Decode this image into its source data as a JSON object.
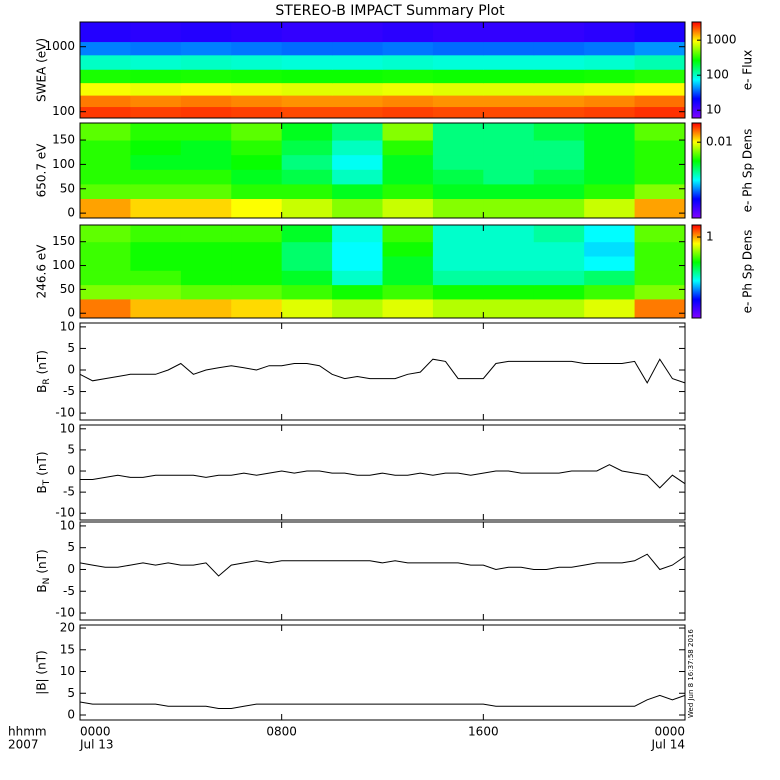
{
  "title": "STEREO-B IMPACT Summary Plot",
  "timestamp": "Wed Jun  8 16:37:58 2016",
  "chart_data": [
    {
      "type": "heatmap",
      "ylabel": "SWEA (eV)",
      "log": true,
      "ylim": [
        80,
        2400
      ],
      "yticks": [
        100,
        1000
      ],
      "xlim": [
        0,
        24
      ],
      "x_edges": [
        0,
        2,
        4,
        6,
        8,
        10,
        12,
        14,
        16,
        18,
        20,
        22,
        24
      ],
      "y_edges": [
        80,
        120,
        180,
        280,
        450,
        750,
        1200,
        2400
      ],
      "z": [
        [
          2500,
          2400,
          2500,
          2400,
          2300,
          2300,
          2400,
          2300,
          2300,
          2300,
          2400,
          2600
        ],
        [
          1800,
          1700,
          1800,
          1700,
          1600,
          1600,
          1700,
          1600,
          1600,
          1600,
          1700,
          1900
        ],
        [
          900,
          850,
          900,
          850,
          800,
          800,
          850,
          800,
          800,
          800,
          850,
          950
        ],
        [
          300,
          290,
          300,
          290,
          280,
          280,
          290,
          280,
          280,
          280,
          290,
          320
        ],
        [
          100,
          95,
          100,
          95,
          90,
          90,
          95,
          90,
          90,
          90,
          95,
          110
        ],
        [
          40,
          38,
          40,
          38,
          36,
          36,
          38,
          36,
          36,
          36,
          38,
          44
        ],
        [
          15,
          14,
          15,
          14,
          13,
          13,
          14,
          13,
          13,
          13,
          14,
          16
        ]
      ],
      "colormap": "rainbow",
      "clim": [
        6,
        3300
      ],
      "cticks": [
        10,
        100,
        1000
      ],
      "clabel": "e- Flux"
    },
    {
      "type": "heatmap",
      "ylabel": "650.7 eV",
      "log": false,
      "ylim": [
        -10,
        185
      ],
      "yticks": [
        0,
        50,
        100,
        150
      ],
      "xlim": [
        0,
        24
      ],
      "x_edges": [
        0,
        2,
        4,
        6,
        8,
        10,
        12,
        14,
        16,
        18,
        20,
        22,
        24
      ],
      "y_edges": [
        -10,
        30,
        60,
        90,
        120,
        150,
        185
      ],
      "z": [
        [
          0.015,
          0.012,
          0.012,
          0.01,
          0.008,
          0.006,
          0.008,
          0.006,
          0.006,
          0.006,
          0.008,
          0.015
        ],
        [
          0.005,
          0.005,
          0.005,
          0.004,
          0.004,
          0.003,
          0.004,
          0.003,
          0.003,
          0.003,
          0.004,
          0.006
        ],
        [
          0.004,
          0.004,
          0.004,
          0.003,
          0.0025,
          0.0015,
          0.003,
          0.0025,
          0.002,
          0.0025,
          0.003,
          0.004
        ],
        [
          0.004,
          0.003,
          0.003,
          0.0035,
          0.002,
          0.0012,
          0.003,
          0.002,
          0.002,
          0.002,
          0.003,
          0.004
        ],
        [
          0.004,
          0.0035,
          0.003,
          0.004,
          0.0025,
          0.0015,
          0.004,
          0.002,
          0.002,
          0.002,
          0.003,
          0.004
        ],
        [
          0.005,
          0.004,
          0.004,
          0.005,
          0.003,
          0.002,
          0.006,
          0.002,
          0.002,
          0.0025,
          0.003,
          0.005
        ]
      ],
      "colormap": "rainbow",
      "clim": [
        0.00013,
        0.03
      ],
      "cticks": [
        0.01
      ],
      "clabel": "e- Ph Sp Dens"
    },
    {
      "type": "heatmap",
      "ylabel": "246.6 eV",
      "log": false,
      "ylim": [
        -10,
        185
      ],
      "yticks": [
        0,
        50,
        100,
        150
      ],
      "xlim": [
        0,
        24
      ],
      "x_edges": [
        0,
        2,
        4,
        6,
        8,
        10,
        12,
        14,
        16,
        18,
        20,
        22,
        24
      ],
      "y_edges": [
        -10,
        30,
        60,
        90,
        120,
        150,
        185
      ],
      "z": [
        [
          1.2,
          0.9,
          0.9,
          0.8,
          0.6,
          0.5,
          0.6,
          0.5,
          0.5,
          0.5,
          0.6,
          1.2
        ],
        [
          0.4,
          0.4,
          0.35,
          0.35,
          0.3,
          0.25,
          0.3,
          0.25,
          0.25,
          0.25,
          0.3,
          0.4
        ],
        [
          0.3,
          0.3,
          0.25,
          0.25,
          0.2,
          0.1,
          0.2,
          0.12,
          0.12,
          0.12,
          0.15,
          0.3
        ],
        [
          0.3,
          0.25,
          0.25,
          0.25,
          0.15,
          0.08,
          0.2,
          0.1,
          0.1,
          0.1,
          0.08,
          0.3
        ],
        [
          0.3,
          0.25,
          0.25,
          0.25,
          0.15,
          0.08,
          0.25,
          0.1,
          0.1,
          0.1,
          0.07,
          0.3
        ],
        [
          0.35,
          0.3,
          0.3,
          0.3,
          0.2,
          0.09,
          0.3,
          0.1,
          0.1,
          0.12,
          0.08,
          0.35
        ]
      ],
      "colormap": "rainbow",
      "clim": [
        0.0094,
        2
      ],
      "cticks": [
        1
      ],
      "clabel": "e- Ph Sp Dens"
    },
    {
      "type": "line",
      "ylabel": {
        "text": "B",
        "sub": "R",
        "unit": "(nT)"
      },
      "color": "#000000",
      "ylim": [
        -11.6,
        10.9
      ],
      "yticks": [
        -10,
        -5,
        0,
        5,
        10
      ],
      "xlim": [
        0,
        24
      ],
      "x": [
        0,
        0.5,
        1,
        1.5,
        2,
        2.5,
        3,
        3.5,
        4,
        4.5,
        5,
        5.5,
        6,
        6.5,
        7,
        7.5,
        8,
        8.5,
        9,
        9.5,
        10,
        10.5,
        11,
        11.5,
        12,
        12.5,
        13,
        13.5,
        14,
        14.5,
        15,
        15.5,
        16,
        16.5,
        17,
        17.5,
        18,
        18.5,
        19,
        19.5,
        20,
        20.5,
        21,
        21.5,
        22,
        22.5,
        23,
        23.5,
        24
      ],
      "values": [
        -1,
        -2.5,
        -2,
        -1.5,
        -1,
        -1,
        -1,
        0,
        1.5,
        -1,
        0,
        0.5,
        1,
        0.5,
        0,
        1,
        1,
        1.5,
        1.5,
        1,
        -1,
        -2,
        -1.5,
        -2,
        -2,
        -2,
        -1,
        -0.5,
        2.5,
        2,
        -2,
        -2,
        -2,
        1.5,
        2,
        2,
        2,
        2,
        2,
        2,
        1.5,
        1.5,
        1.5,
        1.5,
        2,
        -3,
        2.5,
        -2,
        -3
      ]
    },
    {
      "type": "line",
      "ylabel": {
        "text": "B",
        "sub": "T",
        "unit": "(nT)"
      },
      "color": "#000000",
      "ylim": [
        -11.6,
        10.9
      ],
      "yticks": [
        -10,
        -5,
        0,
        5,
        10
      ],
      "xlim": [
        0,
        24
      ],
      "x": [
        0,
        0.5,
        1,
        1.5,
        2,
        2.5,
        3,
        3.5,
        4,
        4.5,
        5,
        5.5,
        6,
        6.5,
        7,
        7.5,
        8,
        8.5,
        9,
        9.5,
        10,
        10.5,
        11,
        11.5,
        12,
        12.5,
        13,
        13.5,
        14,
        14.5,
        15,
        15.5,
        16,
        16.5,
        17,
        17.5,
        18,
        18.5,
        19,
        19.5,
        20,
        20.5,
        21,
        21.5,
        22,
        22.5,
        23,
        23.5,
        24
      ],
      "values": [
        -2,
        -2,
        -1.5,
        -1,
        -1.5,
        -1.5,
        -1,
        -1,
        -1,
        -1,
        -1.5,
        -1,
        -1,
        -0.5,
        -1,
        -0.5,
        0,
        -0.5,
        0,
        0,
        -0.5,
        -0.5,
        -1,
        -1,
        -0.5,
        -1,
        -1,
        -0.5,
        -1,
        -0.5,
        -0.5,
        -1,
        -0.5,
        0,
        0,
        -0.5,
        -0.5,
        -0.5,
        -0.5,
        0,
        0,
        0,
        1.5,
        0,
        -0.5,
        -1,
        -4,
        -1,
        -3
      ]
    },
    {
      "type": "line",
      "ylabel": {
        "text": "B",
        "sub": "N",
        "unit": "(nT)"
      },
      "color": "#000000",
      "ylim": [
        -11.6,
        10.9
      ],
      "yticks": [
        -10,
        -5,
        0,
        5,
        10
      ],
      "xlim": [
        0,
        24
      ],
      "x": [
        0,
        0.5,
        1,
        1.5,
        2,
        2.5,
        3,
        3.5,
        4,
        4.5,
        5,
        5.5,
        6,
        6.5,
        7,
        7.5,
        8,
        8.5,
        9,
        9.5,
        10,
        10.5,
        11,
        11.5,
        12,
        12.5,
        13,
        13.5,
        14,
        14.5,
        15,
        15.5,
        16,
        16.5,
        17,
        17.5,
        18,
        18.5,
        19,
        19.5,
        20,
        20.5,
        21,
        21.5,
        22,
        22.5,
        23,
        23.5,
        24
      ],
      "values": [
        1.5,
        1,
        0.5,
        0.5,
        1,
        1.5,
        1,
        1.5,
        1,
        1,
        1.5,
        -1.5,
        1,
        1.5,
        2,
        1.5,
        2,
        2,
        2,
        2,
        2,
        2,
        2,
        2,
        1.5,
        2,
        1.5,
        1.5,
        1.5,
        1.5,
        1.5,
        1,
        1,
        0,
        0.5,
        0.5,
        0,
        0,
        0.5,
        0.5,
        1,
        1.5,
        1.5,
        1.5,
        2,
        3.5,
        0,
        1,
        3
      ]
    },
    {
      "type": "line",
      "ylabel": "|B| (nT)",
      "color": "#000000",
      "ylim": [
        -1.15,
        20.7
      ],
      "yticks": [
        0,
        5,
        10,
        15,
        20
      ],
      "xlim": [
        0,
        24
      ],
      "x": [
        0,
        0.5,
        1,
        1.5,
        2,
        2.5,
        3,
        3.5,
        4,
        4.5,
        5,
        5.5,
        6,
        6.5,
        7,
        7.5,
        8,
        8.5,
        9,
        9.5,
        10,
        10.5,
        11,
        11.5,
        12,
        12.5,
        13,
        13.5,
        14,
        14.5,
        15,
        15.5,
        16,
        16.5,
        17,
        17.5,
        18,
        18.5,
        19,
        19.5,
        20,
        20.5,
        21,
        21.5,
        22,
        22.5,
        23,
        23.5,
        24
      ],
      "values": [
        3,
        2.5,
        2.5,
        2.5,
        2.5,
        2.5,
        2.5,
        2,
        2,
        2,
        2,
        1.5,
        1.5,
        2,
        2.5,
        2.5,
        2.5,
        2.5,
        2.5,
        2.5,
        2.5,
        2.5,
        2.5,
        2.5,
        2.5,
        2.5,
        2.5,
        2.5,
        2.5,
        2.5,
        2.5,
        2.5,
        2.5,
        2,
        2,
        2,
        2,
        2,
        2,
        2,
        2,
        2,
        2,
        2,
        2,
        3.5,
        4.5,
        3.5,
        4.5
      ],
      "xlabel": "hhmm",
      "xlabel_year": "2007",
      "xticks": [
        {
          "value": 0,
          "label": "0000",
          "date": "Jul 13"
        },
        {
          "value": 8,
          "label": "0800"
        },
        {
          "value": 16,
          "label": "1600"
        },
        {
          "value": 24,
          "label": "0000",
          "date": "Jul 14"
        }
      ]
    }
  ]
}
